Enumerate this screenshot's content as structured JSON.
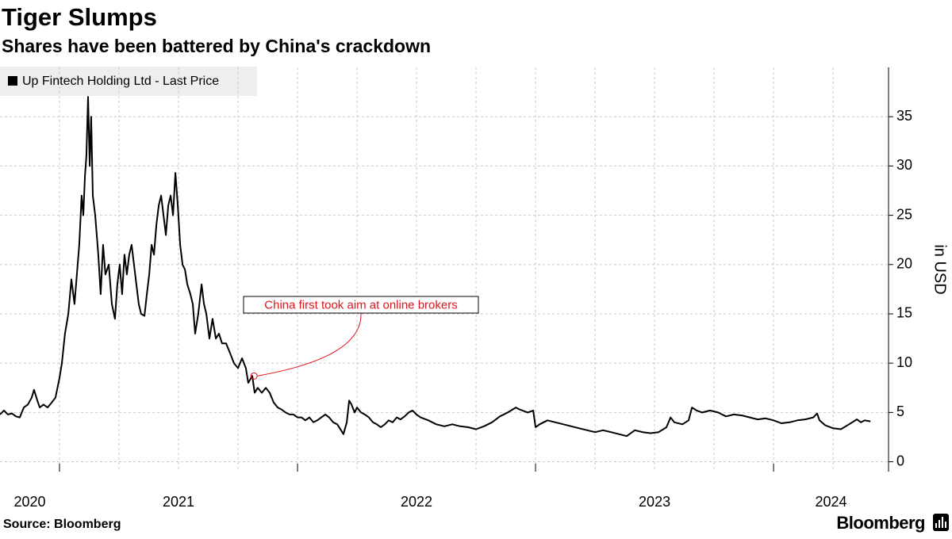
{
  "chart_data": {
    "type": "line",
    "title": "Tiger Slumps",
    "subtitle": "Shares have been battered by China's crackdown",
    "y_axis_label": "in USD",
    "source": "Source: Bloomberg",
    "brand": "Bloomberg",
    "legend": "top-left",
    "grid": true,
    "xlim": [
      2020.75,
      2024.483
    ],
    "xticks": [
      {
        "value": 2020,
        "label": "2020"
      },
      {
        "value": 2021,
        "label": "2021"
      },
      {
        "value": 2022,
        "label": "2022"
      },
      {
        "value": 2023,
        "label": "2023"
      },
      {
        "value": 2024,
        "label": "2024"
      }
    ],
    "xminorticks": [
      2021,
      2021.25,
      2021.5,
      2021.75,
      2022,
      2022.25,
      2022.5,
      2022.75,
      2023,
      2023.25,
      2023.5,
      2023.75,
      2024,
      2024.25
    ],
    "ylim": [
      -1,
      40
    ],
    "yticks": [
      0,
      5,
      10,
      15,
      20,
      25,
      30,
      35
    ],
    "annotation": {
      "text": "China first took aim at online brokers",
      "x": 2021.817,
      "y": 8.7,
      "color": "#e0141e"
    },
    "x": [
      2020.75,
      2020.767,
      2020.783,
      2020.8,
      2020.817,
      2020.833,
      2020.85,
      2020.867,
      2020.883,
      2020.893,
      2020.907,
      2020.917,
      2020.933,
      2020.95,
      2020.967,
      2020.983,
      2021.0,
      2021.01,
      2021.023,
      2021.037,
      2021.05,
      2021.063,
      2021.073,
      2021.083,
      2021.093,
      2021.1,
      2021.107,
      2021.113,
      2021.12,
      2021.127,
      2021.133,
      2021.14,
      2021.15,
      2021.163,
      2021.173,
      2021.183,
      2021.193,
      2021.207,
      2021.22,
      2021.233,
      2021.243,
      2021.253,
      2021.263,
      2021.273,
      2021.283,
      2021.293,
      2021.303,
      2021.313,
      2021.323,
      2021.333,
      2021.343,
      2021.357,
      2021.367,
      2021.377,
      2021.387,
      2021.397,
      2021.407,
      2021.417,
      2021.427,
      2021.437,
      2021.447,
      2021.457,
      2021.467,
      2021.477,
      2021.487,
      2021.497,
      2021.507,
      2021.517,
      2021.527,
      2021.537,
      2021.55,
      2021.56,
      2021.57,
      2021.583,
      2021.597,
      2021.607,
      2021.617,
      2021.63,
      2021.643,
      2021.657,
      2021.67,
      2021.683,
      2021.7,
      2021.717,
      2021.733,
      2021.75,
      2021.767,
      2021.783,
      2021.793,
      2021.81,
      2021.82,
      2021.833,
      2021.85,
      2021.867,
      2021.883,
      2021.9,
      2021.917,
      2021.933,
      2021.95,
      2021.967,
      2021.983,
      2022.0,
      2022.017,
      2022.033,
      2022.05,
      2022.067,
      2022.083,
      2022.1,
      2022.117,
      2022.133,
      2022.15,
      2022.167,
      2022.183,
      2022.193,
      2022.207,
      2022.217,
      2022.227,
      2022.24,
      2022.25,
      2022.267,
      2022.283,
      2022.3,
      2022.317,
      2022.333,
      2022.35,
      2022.367,
      2022.383,
      2022.4,
      2022.417,
      2022.433,
      2022.45,
      2022.467,
      2022.483,
      2022.5,
      2022.517,
      2022.55,
      2022.583,
      2022.617,
      2022.65,
      2022.683,
      2022.717,
      2022.75,
      2022.783,
      2022.817,
      2022.85,
      2022.883,
      2022.917,
      2022.933,
      2022.967,
      2022.99,
      2023.0,
      2023.017,
      2023.05,
      2023.083,
      2023.117,
      2023.15,
      2023.183,
      2023.217,
      2023.25,
      2023.283,
      2023.317,
      2023.35,
      2023.383,
      2023.417,
      2023.45,
      2023.483,
      2023.517,
      2023.55,
      2023.567,
      2023.583,
      2023.617,
      2023.643,
      2023.657,
      2023.677,
      2023.7,
      2023.733,
      2023.767,
      2023.8,
      2023.833,
      2023.867,
      2023.9,
      2023.933,
      2023.967,
      2024.0,
      2024.033,
      2024.067,
      2024.1,
      2024.133,
      2024.167,
      2024.183,
      2024.193,
      2024.217,
      2024.25,
      2024.283,
      2024.317,
      2024.35,
      2024.367,
      2024.383,
      2024.407
    ],
    "series": [
      {
        "name": "Up Fintech Holding Ltd - Last Price",
        "color": "#000000",
        "values": [
          4.8,
          5.2,
          4.8,
          4.9,
          4.6,
          4.5,
          5.5,
          5.8,
          6.5,
          7.3,
          6.2,
          5.5,
          5.8,
          5.5,
          6.0,
          6.5,
          8.5,
          10,
          13,
          15,
          18.5,
          16,
          19,
          22,
          27,
          25,
          29,
          31,
          37,
          30,
          35,
          27,
          25,
          21,
          17,
          22,
          19,
          20,
          16,
          14.5,
          18,
          20,
          17,
          21,
          19,
          21,
          22,
          20,
          18,
          16,
          15,
          14.8,
          17,
          19,
          22,
          21,
          24,
          26,
          27,
          25,
          23,
          26,
          27,
          25,
          29.3,
          26,
          22,
          20,
          19.5,
          18,
          17,
          16,
          13,
          15,
          18,
          16,
          15,
          12.5,
          14.5,
          12.5,
          13,
          12,
          12,
          11,
          10,
          9.5,
          10.5,
          9.5,
          8,
          8.7,
          7,
          7.5,
          7,
          7.5,
          7,
          6,
          5.5,
          5.3,
          5,
          4.8,
          4.8,
          4.5,
          4.5,
          4.2,
          4.5,
          4.0,
          4.2,
          4.5,
          4.8,
          4.5,
          4.0,
          3.8,
          3.2,
          2.8,
          4.0,
          6.2,
          5.8,
          5.0,
          5.5,
          5.0,
          4.8,
          4.5,
          4.0,
          3.8,
          3.5,
          3.8,
          4.2,
          4.0,
          4.5,
          4.3,
          4.6,
          5.0,
          5.2,
          4.8,
          4.5,
          4.2,
          3.8,
          3.6,
          3.8,
          3.6,
          3.5,
          3.3,
          3.6,
          4.0,
          4.6,
          5.0,
          5.5,
          5.3,
          5.0,
          5.2,
          3.5,
          3.8,
          4.2,
          4.0,
          3.8,
          3.6,
          3.4,
          3.2,
          3.0,
          3.2,
          3.0,
          2.8,
          2.6,
          3.2,
          3.0,
          2.9,
          3.0,
          3.5,
          4.5,
          4.0,
          3.8,
          4.2,
          5.5,
          5.2,
          5.0,
          5.2,
          5.0,
          4.6,
          4.8,
          4.7,
          4.5,
          4.3,
          4.4,
          4.2,
          3.9,
          4.0,
          4.2,
          4.3,
          4.5,
          4.9,
          4.2,
          3.7,
          3.4,
          3.3,
          3.8,
          4.3,
          4.0,
          4.2,
          4.1
        ]
      }
    ]
  }
}
